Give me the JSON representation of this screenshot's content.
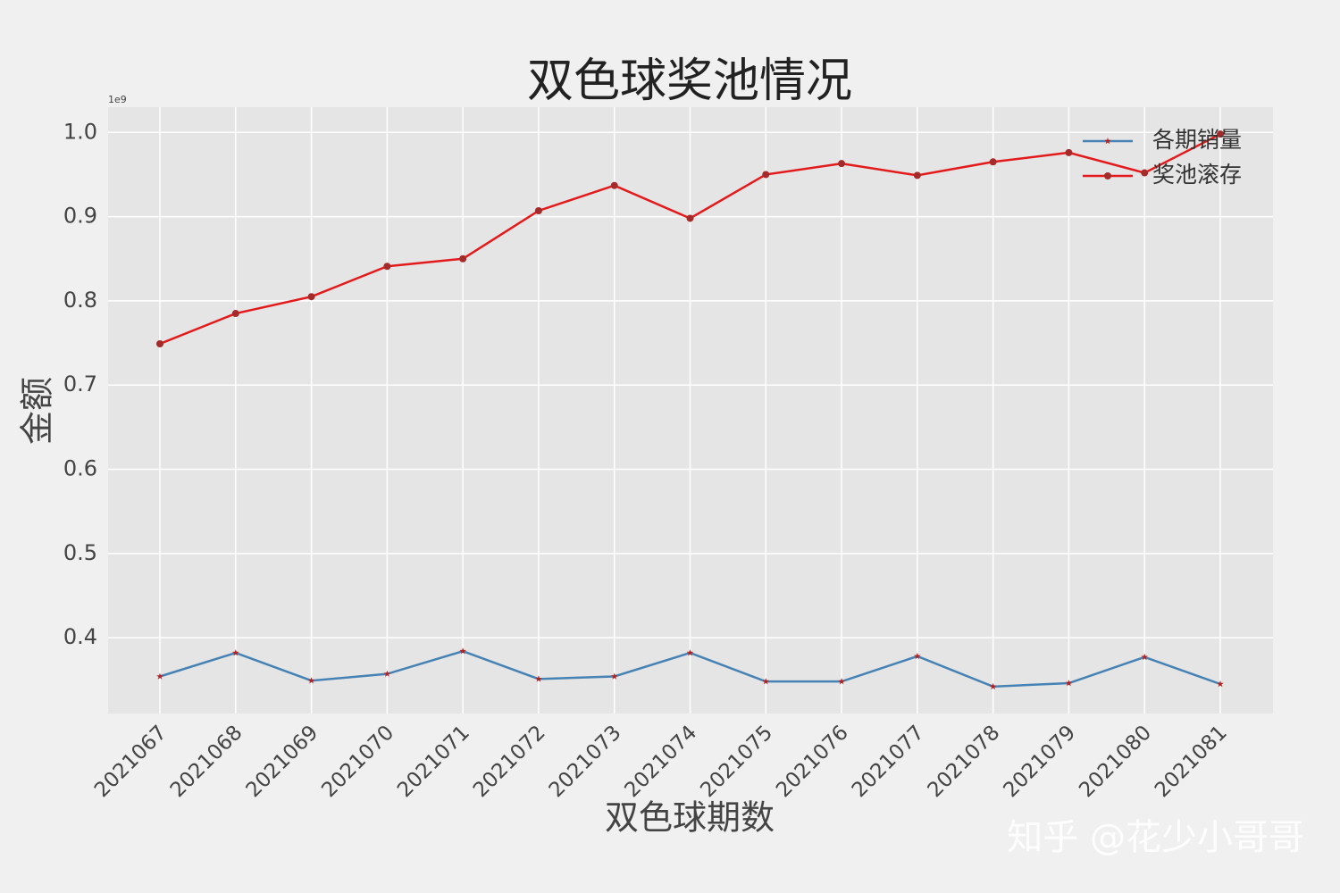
{
  "chart_data": {
    "type": "line",
    "title": "双色球奖池情况",
    "xlabel": "双色球期数",
    "ylabel": "金额",
    "y_offset_label": "1e9",
    "categories": [
      "2021067",
      "2021068",
      "2021069",
      "2021070",
      "2021071",
      "2021072",
      "2021073",
      "2021074",
      "2021075",
      "2021076",
      "2021077",
      "2021078",
      "2021079",
      "2021080",
      "2021081"
    ],
    "series": [
      {
        "name": "各期销量",
        "color": "#4682b4",
        "marker": "star",
        "marker_color": "#b22222",
        "values": [
          0.354,
          0.382,
          0.349,
          0.357,
          0.384,
          0.351,
          0.354,
          0.382,
          0.348,
          0.348,
          0.378,
          0.342,
          0.346,
          0.377,
          0.345
        ]
      },
      {
        "name": "奖池滚存",
        "color": "#e31a1c",
        "marker": "circle",
        "marker_color": "#a52a2a",
        "values": [
          0.749,
          0.785,
          0.805,
          0.841,
          0.85,
          0.907,
          0.937,
          0.898,
          0.95,
          0.963,
          0.949,
          0.965,
          0.976,
          0.952,
          0.998
        ]
      }
    ],
    "ylim": [
      0.31,
      1.03
    ],
    "yticks": [
      0.4,
      0.5,
      0.6,
      0.7,
      0.8,
      0.9,
      {
        "value": 1,
        "label": "1.0"
      }
    ],
    "grid": true,
    "legend": "upper right",
    "watermark": "知乎 @花少小哥哥"
  }
}
